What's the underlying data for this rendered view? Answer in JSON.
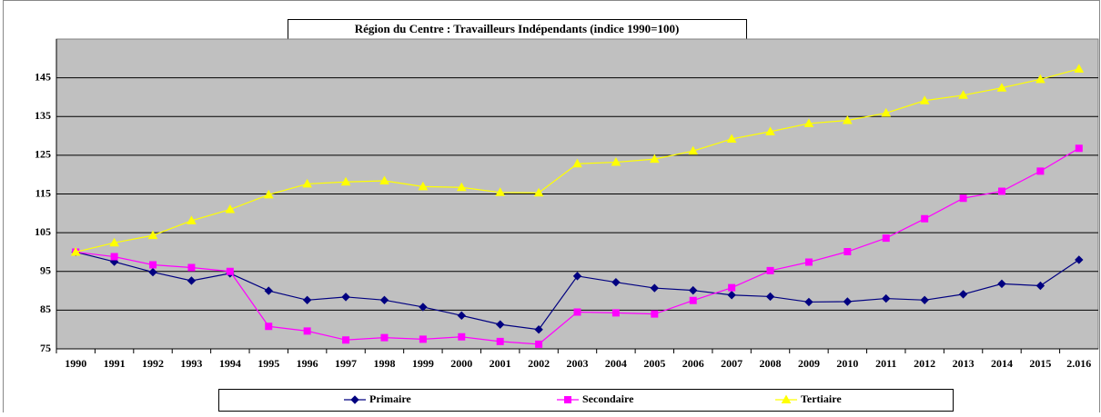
{
  "chart_data": {
    "type": "line",
    "title": "Région du Centre : Travailleurs Indépendants (indice 1990=100)",
    "categories": [
      "1990",
      "1991",
      "1992",
      "1993",
      "1994",
      "1995",
      "1996",
      "1997",
      "1998",
      "1999",
      "2000",
      "2001",
      "2002",
      "2003",
      "2004",
      "2005",
      "2006",
      "2007",
      "2008",
      "2009",
      "2010",
      "2011",
      "2012",
      "2013",
      "2014",
      "2015",
      "2.016"
    ],
    "series": [
      {
        "name": "Primaire",
        "color": "#000080",
        "marker": "diamond",
        "values": [
          100,
          97.5,
          94.8,
          92.6,
          94.5,
          90,
          87.6,
          88.4,
          87.6,
          85.8,
          83.6,
          81.3,
          80,
          93.8,
          92.2,
          90.7,
          90.1,
          88.9,
          88.5,
          87.1,
          87.2,
          88,
          87.6,
          89.1,
          91.8,
          91.3,
          98
        ]
      },
      {
        "name": "Secondaire",
        "color": "#ff00ff",
        "marker": "square",
        "values": [
          100,
          98.8,
          96.7,
          96,
          95,
          80.8,
          79.6,
          77.3,
          77.9,
          77.5,
          78.1,
          76.9,
          76.2,
          84.5,
          84.3,
          84,
          87.5,
          90.8,
          95.2,
          97.4,
          100.1,
          103.6,
          108.6,
          113.9,
          115.7,
          120.9,
          126.8
        ]
      },
      {
        "name": "Tertiaire",
        "color": "#ffff00",
        "marker": "triangle",
        "values": [
          100,
          102.4,
          104.3,
          108.1,
          111,
          114.8,
          117.6,
          118.1,
          118.4,
          116.9,
          116.7,
          115.4,
          115.3,
          122.8,
          123.2,
          124,
          126.1,
          129.2,
          131.1,
          133.2,
          134,
          135.9,
          139.1,
          140.5,
          142.4,
          144.6,
          147.3
        ]
      }
    ],
    "ylim": [
      75,
      155
    ],
    "yticks": [
      75,
      85,
      95,
      105,
      115,
      125,
      135,
      145
    ],
    "grid": true,
    "legend": "bottom"
  }
}
